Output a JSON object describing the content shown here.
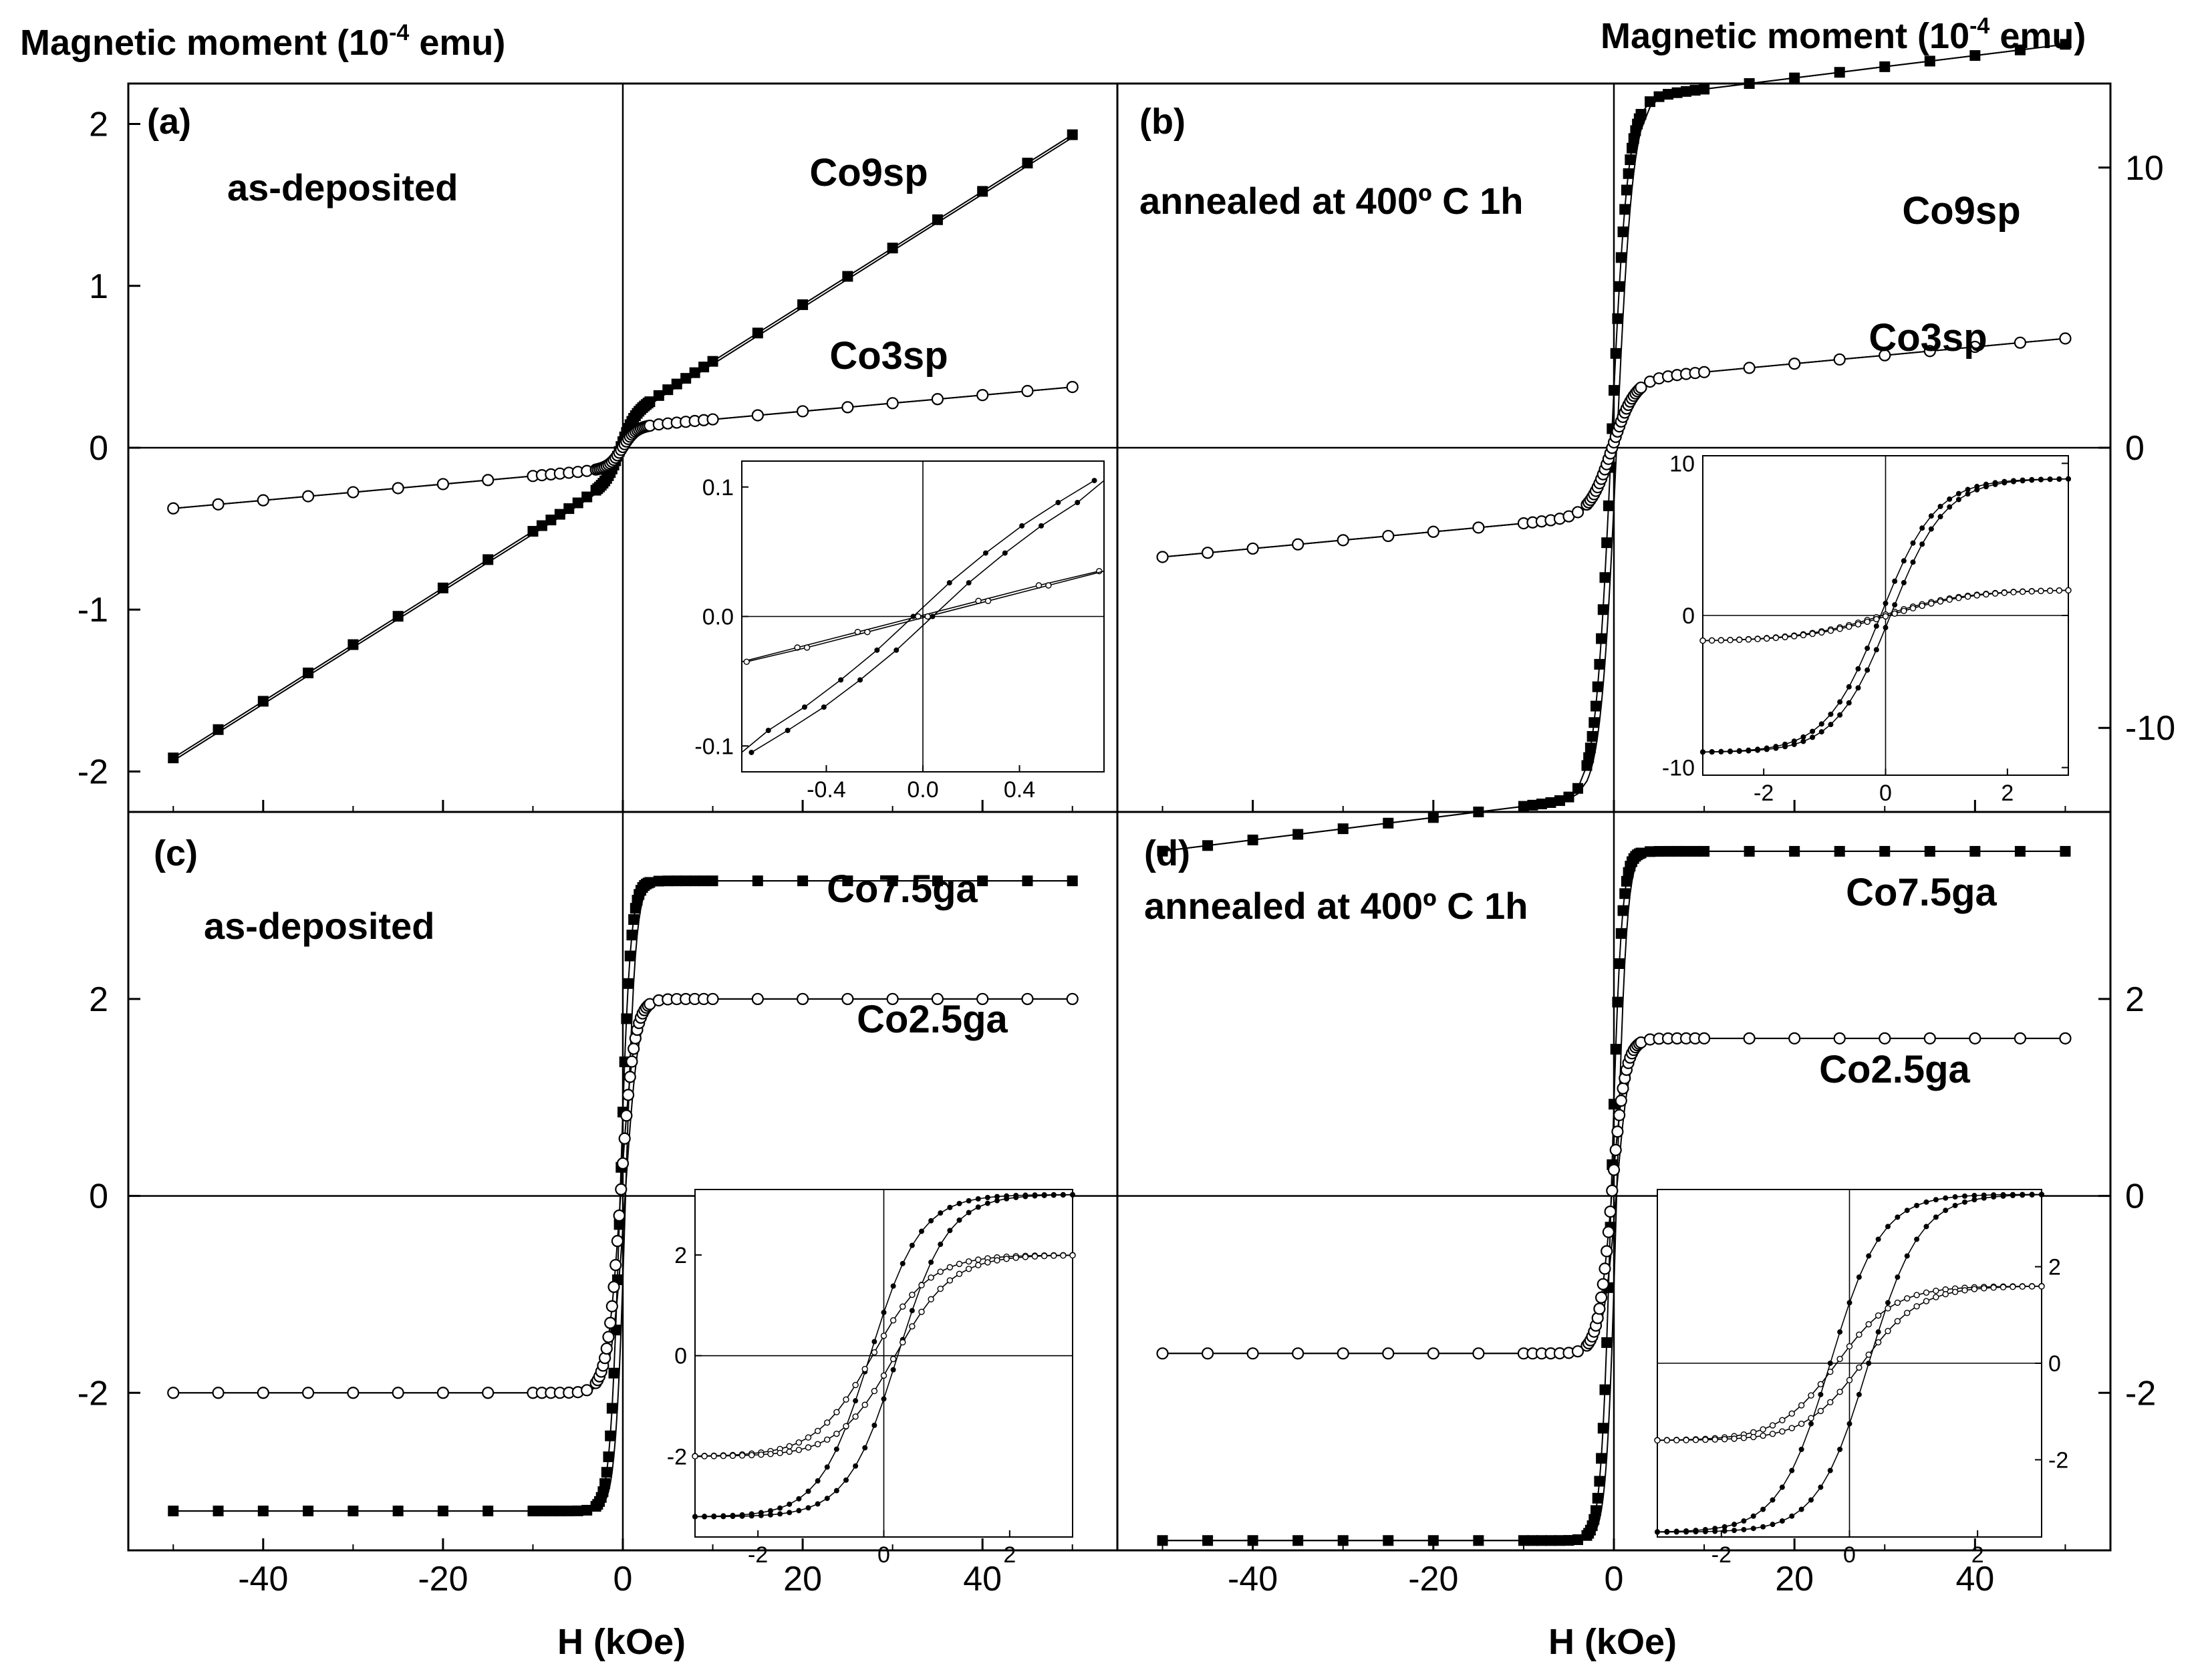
{
  "figure": {
    "y_label_left": "Magnetic moment (10",
    "y_label_exp": "-4",
    "y_label_unit": " emu)",
    "y_label_right": "Magnetic moment (10",
    "x_label": "H (kOe)"
  },
  "colors": {
    "line": "#000000",
    "background": "#ffffff"
  },
  "chart_data": [
    {
      "panel": "(a)",
      "type": "line",
      "condition": "as-deposited",
      "xlabel": "H (kOe)",
      "ylabel": "Magnetic moment (10^-4 emu)",
      "xlim": [
        -55,
        55
      ],
      "ylim": [
        -2.25,
        2.25
      ],
      "xticks": [
        -40,
        -20,
        0,
        20,
        40
      ],
      "yticks": [
        -2,
        -1,
        0,
        1,
        2
      ],
      "y_tick_labels": [
        "-2",
        "-1",
        "0",
        "1",
        "2"
      ],
      "series": [
        {
          "name": "Co9sp",
          "marker": "filled-square",
          "shape": "linear",
          "m": 1.75,
          "curv": 0.7,
          "hc": 0.25
        },
        {
          "name": "Co3sp",
          "marker": "open-circle",
          "shape": "linear",
          "m": 0.25,
          "curv": 0.5,
          "hc": 0.05
        }
      ],
      "inset": {
        "xlim": [
          -0.75,
          0.75
        ],
        "ylim": [
          -0.12,
          0.12
        ],
        "xticks": [
          -0.4,
          0.0,
          0.4
        ],
        "yticks": [
          -0.1,
          0.0,
          0.1
        ],
        "x_tick_labels": [
          "-0.4",
          "0.0",
          "0.4"
        ],
        "y_tick_labels": [
          "-0.1",
          "0.0",
          "0.1"
        ],
        "series": [
          {
            "name": "Co9sp",
            "marker": "filled",
            "x": [
              -0.75,
              -0.6,
              -0.45,
              -0.3,
              -0.15,
              0,
              0.15,
              0.3,
              0.45,
              0.6,
              0.75
            ],
            "y": [
              -0.105,
              -0.088,
              -0.07,
              -0.049,
              -0.026,
              0.0,
              0.026,
              0.049,
              0.07,
              0.088,
              0.105
            ],
            "hc": 0.04
          },
          {
            "name": "Co3sp",
            "marker": "open",
            "x": [
              -0.75,
              -0.5,
              -0.25,
              0,
              0.25,
              0.5,
              0.75
            ],
            "y": [
              -0.035,
              -0.024,
              -0.012,
              0.0,
              0.012,
              0.024,
              0.035
            ],
            "hc": 0.02
          }
        ]
      }
    },
    {
      "panel": "(b)",
      "type": "line",
      "condition": "annealed at 400º C 1h",
      "xlabel": "H (kOe)",
      "ylabel": "Magnetic moment (10^-4 emu)",
      "xlim": [
        -55,
        55
      ],
      "ylim": [
        -13,
        13
      ],
      "xticks": [
        -40,
        -20,
        0,
        20,
        40
      ],
      "yticks": [
        -10,
        0,
        10
      ],
      "y_tick_labels": [
        "-10",
        "0",
        "10"
      ],
      "series": [
        {
          "name": "Co9sp",
          "marker": "filled-square",
          "shape": "saturating",
          "ms": 12.4,
          "w": 1.8,
          "slope": 0.04,
          "hc": 0.3
        },
        {
          "name": "Co3sp",
          "marker": "open-circle",
          "shape": "saturating",
          "ms": 2.4,
          "w": 2.5,
          "slope": 0.03,
          "hc": 0.2
        }
      ],
      "inset": {
        "xlim": [
          -3,
          3
        ],
        "ylim": [
          -10.5,
          10.5
        ],
        "xticks": [
          -2,
          0,
          2
        ],
        "yticks": [
          -10,
          0,
          10
        ],
        "x_tick_labels": [
          "-2",
          "0",
          "2"
        ],
        "y_tick_labels": [
          "-10",
          "0",
          "10"
        ],
        "series": [
          {
            "name": "Co9sp",
            "marker": "filled",
            "ms": 9.0,
            "w": 0.9,
            "hc": 0.08
          },
          {
            "name": "Co3sp",
            "marker": "open",
            "ms": 1.7,
            "w": 1.4,
            "hc": 0.05
          }
        ]
      }
    },
    {
      "panel": "(c)",
      "type": "line",
      "condition": "as-deposited",
      "xlabel": "H (kOe)",
      "ylabel": "Magnetic moment (10^-4 emu)",
      "xlim": [
        -55,
        55
      ],
      "ylim": [
        -3.6,
        3.9
      ],
      "xticks": [
        -40,
        -20,
        0,
        20,
        40
      ],
      "yticks": [
        -2,
        0,
        2
      ],
      "y_tick_labels": [
        "-2",
        "0",
        "2"
      ],
      "series": [
        {
          "name": "Co7.5ga",
          "marker": "filled-square",
          "shape": "saturating",
          "ms": 3.2,
          "w": 1.1,
          "slope": 0,
          "hc": 0.3
        },
        {
          "name": "Co2.5ga",
          "marker": "open-circle",
          "shape": "saturating",
          "ms": 2.0,
          "w": 1.5,
          "slope": 0,
          "hc": 0.25
        }
      ],
      "inset": {
        "xlim": [
          -3,
          3
        ],
        "ylim": [
          -3.6,
          3.3
        ],
        "xticks": [
          -2,
          0,
          2
        ],
        "yticks": [
          -2,
          0,
          2
        ],
        "x_tick_labels": [
          "-2",
          "0",
          "2"
        ],
        "y_tick_labels": [
          "-2",
          "0",
          "2"
        ],
        "series": [
          {
            "name": "Co7.5ga",
            "marker": "filled",
            "ms": 3.2,
            "w": 0.8,
            "hc": 0.22
          },
          {
            "name": "Co2.5ga",
            "marker": "open",
            "ms": 2.0,
            "w": 0.9,
            "hc": 0.18
          }
        ]
      }
    },
    {
      "panel": "(d)",
      "type": "line",
      "condition": "annealed at 400º C 1h",
      "xlabel": "H (kOe)",
      "ylabel": "Magnetic moment (10^-4 emu)",
      "xlim": [
        -55,
        55
      ],
      "ylim": [
        -3.6,
        3.9
      ],
      "xticks": [
        -40,
        -20,
        0,
        20,
        40
      ],
      "yticks": [
        -2,
        0,
        2
      ],
      "y_tick_labels": [
        "-2",
        "0",
        "2"
      ],
      "series": [
        {
          "name": "Co7.5ga",
          "marker": "filled-square",
          "shape": "saturating",
          "ms": 3.5,
          "w": 1.1,
          "slope": 0,
          "hc": 0.3
        },
        {
          "name": "Co2.5ga",
          "marker": "open-circle",
          "shape": "saturating",
          "ms": 1.6,
          "w": 1.5,
          "slope": 0,
          "hc": 0.25
        }
      ],
      "inset": {
        "xlim": [
          -3,
          3
        ],
        "ylim": [
          -3.6,
          3.6
        ],
        "xticks": [
          -2,
          0,
          2
        ],
        "yticks": [
          -2,
          0,
          2
        ],
        "x_tick_labels": [
          "-2",
          "0",
          "2"
        ],
        "y_tick_labels": [
          "-2",
          "0",
          "2"
        ],
        "series": [
          {
            "name": "Co7.5ga",
            "marker": "filled",
            "ms": 3.5,
            "w": 0.8,
            "hc": 0.3
          },
          {
            "name": "Co2.5ga",
            "marker": "open",
            "ms": 1.6,
            "w": 0.9,
            "hc": 0.2
          }
        ]
      }
    }
  ]
}
